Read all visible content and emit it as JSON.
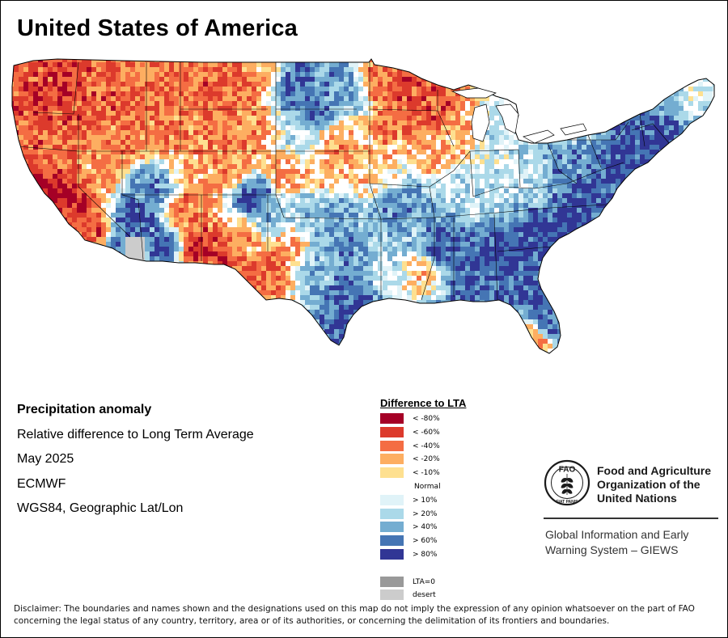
{
  "title": "United States of America",
  "info": {
    "product": "Precipitation anomaly",
    "description": "Relative difference to Long Term Average",
    "period": "May 2025",
    "source": "ECMWF",
    "projection": "WGS84, Geographic Lat/Lon"
  },
  "legend": {
    "title": "Difference to LTA",
    "dry": [
      {
        "label": "< -80%",
        "color": "#a50026"
      },
      {
        "label": "< -60%",
        "color": "#dc3a2c"
      },
      {
        "label": "< -40%",
        "color": "#f46d43"
      },
      {
        "label": "< -20%",
        "color": "#fdae61"
      },
      {
        "label": "< -10%",
        "color": "#fee090"
      }
    ],
    "normal": "Normal",
    "wet": [
      {
        "label": "> 10%",
        "color": "#e0f3f8"
      },
      {
        "label": "> 20%",
        "color": "#abd9e9"
      },
      {
        "label": "> 40%",
        "color": "#74add1"
      },
      {
        "label": "> 60%",
        "color": "#4575b4"
      },
      {
        "label": "> 80%",
        "color": "#313695"
      }
    ],
    "special": [
      {
        "label": "LTA=0",
        "color": "#999999"
      },
      {
        "label": "desert",
        "color": "#cccccc"
      }
    ]
  },
  "fao": {
    "name_line1": "Food and Agriculture",
    "name_line2": "Organization of the",
    "name_line3": "United Nations",
    "logo_text": "FAO",
    "motto": "FIAT PANIS",
    "system_line1": "Global Information and Early",
    "system_line2": "Warning System – GIEWS"
  },
  "disclaimer": "Disclaimer: The boundaries and names shown and the designations used on this map do not imply the expression of any opinion whatsoever on the part of FAO concerning the legal status of any country, territory, area or of its authorities, or concerning the delimitation of its frontiers and boundaries.",
  "colors": {
    "state_border": "#000000",
    "water": "#ffffff"
  }
}
